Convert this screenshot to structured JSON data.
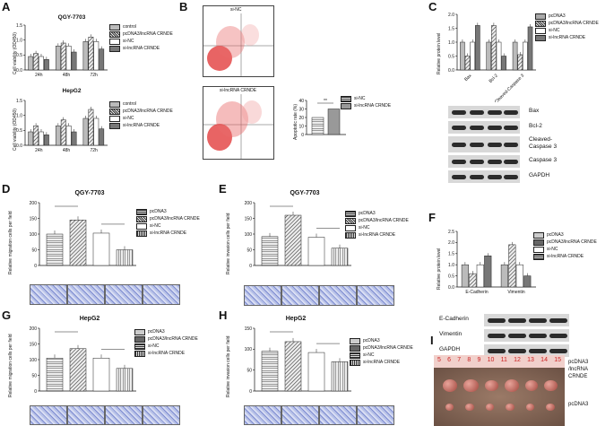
{
  "panel_letters": [
    "A",
    "B",
    "C",
    "D",
    "E",
    "F",
    "G",
    "H",
    "I"
  ],
  "A": {
    "charts": [
      {
        "title": "QGY-7703",
        "ylabel": "Cell viability (OD450)",
        "categories": [
          "24h",
          "48h",
          "72h"
        ],
        "legend": [
          "control",
          "pcDNA3/lncRNA CRNDE",
          "si-NC",
          "si-lncRNA CRNDE"
        ],
        "series": [
          [
            0.45,
            0.8,
            0.95
          ],
          [
            0.55,
            0.9,
            1.1
          ],
          [
            0.45,
            0.8,
            0.95
          ],
          [
            0.35,
            0.6,
            0.7
          ]
        ],
        "ymax": 1.5,
        "ticks": [
          "0.0",
          "0.5",
          "1.0",
          "1.5"
        ]
      },
      {
        "title": "HepG2",
        "ylabel": "Cell viability (OD450)",
        "categories": [
          "24h",
          "48h",
          "72h"
        ],
        "legend": [
          "control",
          "pcDNA3/lncRNA CRNDE",
          "si-NC",
          "si-lncRNA CRNDE"
        ],
        "series": [
          [
            0.45,
            0.65,
            0.9
          ],
          [
            0.65,
            0.85,
            1.2
          ],
          [
            0.45,
            0.65,
            0.9
          ],
          [
            0.35,
            0.45,
            0.55
          ]
        ],
        "ymax": 1.5,
        "ticks": [
          "0.0",
          "0.5",
          "1.0",
          "1.5"
        ]
      }
    ]
  },
  "B": {
    "flow_top": "si-NC",
    "flow_bottom": "si-lncRNA CRNDE",
    "bar": {
      "ylabel": "Apoptotic rate (%)",
      "legend": [
        "si-NC",
        "si-lncRNA CRNDE"
      ],
      "values": [
        20,
        30
      ],
      "ymax": 40,
      "ticks": [
        "0",
        "10",
        "20",
        "30",
        "40"
      ],
      "sig": "**"
    }
  },
  "C": {
    "ylabel": "Relative protein level",
    "categories": [
      "Bax",
      "Bcl-2",
      "Cleaved-Caspase 3"
    ],
    "legend": [
      "pcDNA3",
      "pcDNA3/lncRNA CRNDE",
      "si-NC",
      "si-lncRNA CRNDE"
    ],
    "series": [
      [
        1.0,
        1.0,
        1.0
      ],
      [
        0.5,
        1.6,
        0.55
      ],
      [
        1.0,
        1.0,
        1.0
      ],
      [
        1.6,
        0.5,
        1.55
      ]
    ],
    "ymax": 2.0,
    "ticks": [
      "0.0",
      "0.5",
      "1.0",
      "1.5",
      "2.0"
    ],
    "blots": [
      "Bax",
      "Bcl-2",
      "Cleaved-\nCaspase 3",
      "Caspase 3",
      "GAPDH"
    ]
  },
  "D": {
    "title": "QGY-7703",
    "ylabel": "Relative migration cells per field",
    "legend": [
      "pcDNA3",
      "pcDNA3/lncRNA CRNDE",
      "si-NC",
      "si-lncRNA CRNDE"
    ],
    "values": [
      100,
      145,
      103,
      50
    ],
    "ymax": 200,
    "ticks": [
      "0",
      "50",
      "100",
      "150",
      "200"
    ]
  },
  "E": {
    "title": "QGY-7703",
    "ylabel": "Relative invasion cells per field",
    "legend": [
      "pcDNA3",
      "pcDNA3/lncRNA CRNDE",
      "si-NC",
      "si-lncRNA CRNDE"
    ],
    "values": [
      92,
      160,
      90,
      55
    ],
    "ymax": 200,
    "ticks": [
      "0",
      "50",
      "100",
      "150",
      "200"
    ]
  },
  "F": {
    "ylabel": "Relative protein level",
    "categories": [
      "E-Cadherin",
      "Vimentin"
    ],
    "legend": [
      "pcDNA3",
      "pcDNA3/lncRNA CRNDE",
      "si-NC",
      "si-lncRNA CRNDE"
    ],
    "series": [
      [
        1.0,
        1.0
      ],
      [
        0.6,
        1.9
      ],
      [
        1.0,
        1.0
      ],
      [
        1.4,
        0.5
      ]
    ],
    "ymax": 2.5,
    "ticks": [
      "0.0",
      "0.5",
      "1.0",
      "1.5",
      "2.0",
      "2.5"
    ],
    "blots": [
      "E-Cadherin",
      "Vimentin",
      "GAPDH"
    ]
  },
  "G": {
    "title": "HepG2",
    "ylabel": "Relative migration cells per field",
    "legend": [
      "pcDNA3",
      "pcDNA3/lncRNA CRNDE",
      "si-NC",
      "si-lncRNA CRNDE"
    ],
    "values": [
      105,
      135,
      105,
      72
    ],
    "ymax": 200,
    "ticks": [
      "0",
      "50",
      "100",
      "150",
      "200"
    ]
  },
  "H": {
    "title": "HepG2",
    "ylabel": "Relative invasion cells per field",
    "legend": [
      "pcDNA3",
      "pcDNA3/lncRNA CRNDE",
      "si-NC",
      "si-lncRNA CRNDE"
    ],
    "values": [
      95,
      118,
      92,
      70
    ],
    "ymax": 150,
    "ticks": [
      "0",
      "50",
      "100",
      "150"
    ]
  },
  "I": {
    "ruler": [
      "5",
      "6",
      "7",
      "8",
      "9",
      "10",
      "11",
      "12",
      "13",
      "14",
      "15"
    ],
    "labels": [
      "pcDNA3\n/lncRNA\nCRNDE",
      "pcDNA3"
    ]
  },
  "chart_data": [
    {
      "type": "bar",
      "title": "QGY-7703",
      "ylabel": "Cell viability (OD450)",
      "categories": [
        "24h",
        "48h",
        "72h"
      ],
      "series": [
        {
          "name": "control",
          "values": [
            0.45,
            0.8,
            0.95
          ]
        },
        {
          "name": "pcDNA3/lncRNA CRNDE",
          "values": [
            0.55,
            0.9,
            1.1
          ]
        },
        {
          "name": "si-NC",
          "values": [
            0.45,
            0.8,
            0.95
          ]
        },
        {
          "name": "si-lncRNA CRNDE",
          "values": [
            0.35,
            0.6,
            0.7
          ]
        }
      ],
      "ylim": [
        0,
        1.5
      ]
    },
    {
      "type": "bar",
      "title": "HepG2",
      "ylabel": "Cell viability (OD450)",
      "categories": [
        "24h",
        "48h",
        "72h"
      ],
      "series": [
        {
          "name": "control",
          "values": [
            0.45,
            0.65,
            0.9
          ]
        },
        {
          "name": "pcDNA3/lncRNA CRNDE",
          "values": [
            0.65,
            0.85,
            1.2
          ]
        },
        {
          "name": "si-NC",
          "values": [
            0.45,
            0.65,
            0.9
          ]
        },
        {
          "name": "si-lncRNA CRNDE",
          "values": [
            0.35,
            0.45,
            0.55
          ]
        }
      ],
      "ylim": [
        0,
        1.5
      ]
    },
    {
      "type": "bar",
      "ylabel": "Apoptotic rate (%)",
      "categories": [
        "si-NC",
        "si-lncRNA CRNDE"
      ],
      "values": [
        20,
        30
      ],
      "ylim": [
        0,
        40
      ]
    },
    {
      "type": "bar",
      "ylabel": "Relative protein level",
      "categories": [
        "Bax",
        "Bcl-2",
        "Cleaved-Caspase 3"
      ],
      "series": [
        {
          "name": "pcDNA3",
          "values": [
            1.0,
            1.0,
            1.0
          ]
        },
        {
          "name": "pcDNA3/lncRNA CRNDE",
          "values": [
            0.5,
            1.6,
            0.55
          ]
        },
        {
          "name": "si-NC",
          "values": [
            1.0,
            1.0,
            1.0
          ]
        },
        {
          "name": "si-lncRNA CRNDE",
          "values": [
            1.6,
            0.5,
            1.55
          ]
        }
      ],
      "ylim": [
        0,
        2.0
      ]
    },
    {
      "type": "bar",
      "title": "QGY-7703",
      "ylabel": "Relative migration cells per field",
      "categories": [
        "pcDNA3",
        "pcDNA3/lncRNA CRNDE",
        "si-NC",
        "si-lncRNA CRNDE"
      ],
      "values": [
        100,
        145,
        103,
        50
      ],
      "ylim": [
        0,
        200
      ]
    },
    {
      "type": "bar",
      "title": "QGY-7703",
      "ylabel": "Relative invasion cells per field",
      "categories": [
        "pcDNA3",
        "pcDNA3/lncRNA CRNDE",
        "si-NC",
        "si-lncRNA CRNDE"
      ],
      "values": [
        92,
        160,
        90,
        55
      ],
      "ylim": [
        0,
        200
      ]
    },
    {
      "type": "bar",
      "ylabel": "Relative protein level",
      "categories": [
        "E-Cadherin",
        "Vimentin"
      ],
      "series": [
        {
          "name": "pcDNA3",
          "values": [
            1.0,
            1.0
          ]
        },
        {
          "name": "pcDNA3/lncRNA CRNDE",
          "values": [
            0.6,
            1.9
          ]
        },
        {
          "name": "si-NC",
          "values": [
            1.0,
            1.0
          ]
        },
        {
          "name": "si-lncRNA CRNDE",
          "values": [
            1.4,
            0.5
          ]
        }
      ],
      "ylim": [
        0,
        2.5
      ]
    },
    {
      "type": "bar",
      "title": "HepG2",
      "ylabel": "Relative migration cells per field",
      "categories": [
        "pcDNA3",
        "pcDNA3/lncRNA CRNDE",
        "si-NC",
        "si-lncRNA CRNDE"
      ],
      "values": [
        105,
        135,
        105,
        72
      ],
      "ylim": [
        0,
        200
      ]
    },
    {
      "type": "bar",
      "title": "HepG2",
      "ylabel": "Relative invasion cells per field",
      "categories": [
        "pcDNA3",
        "pcDNA3/lncRNA CRNDE",
        "si-NC",
        "si-lncRNA CRNDE"
      ],
      "values": [
        95,
        118,
        92,
        70
      ],
      "ylim": [
        0,
        150
      ]
    }
  ]
}
